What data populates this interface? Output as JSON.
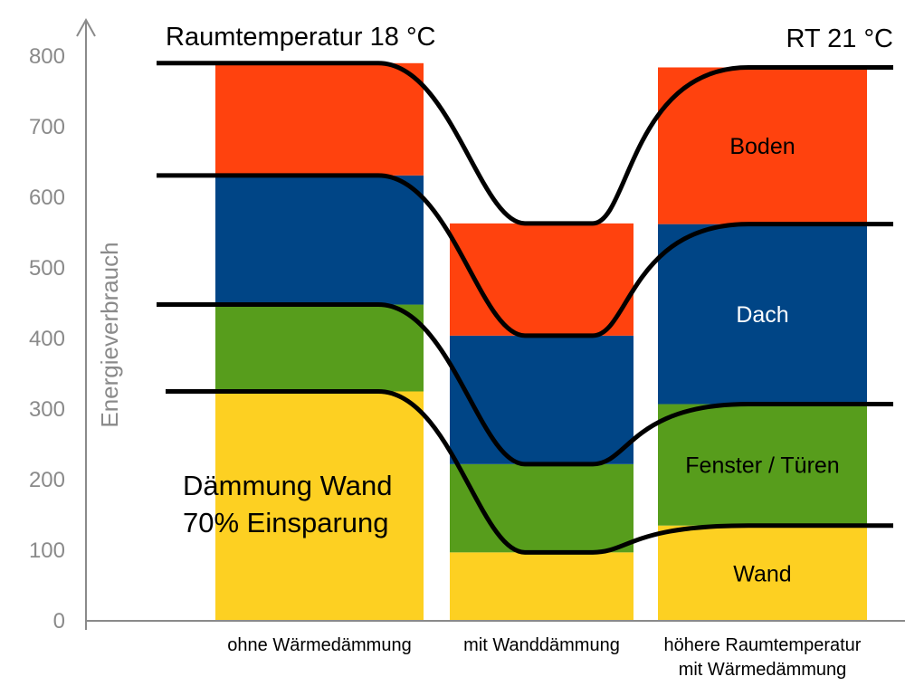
{
  "chart_data": {
    "type": "bar",
    "stacked": true,
    "ylabel": "Energieverbrauch",
    "ylim": [
      0,
      800
    ],
    "yticks": [
      0,
      100,
      200,
      300,
      400,
      500,
      600,
      700,
      800
    ],
    "grid": false,
    "categories": [
      [
        "ohne Wärmedämmung"
      ],
      [
        "mit Wanddämmung"
      ],
      [
        "höhere Raumtemperatur",
        "mit Wärmedämmung"
      ]
    ],
    "series": [
      {
        "name": "Wand",
        "color": "#FDD022",
        "labelColor": "#000000",
        "values": [
          325,
          97,
          135
        ]
      },
      {
        "name": "Fenster / Türen",
        "color": "#579D1C",
        "labelColor": "#000000",
        "values": [
          123,
          125,
          172
        ]
      },
      {
        "name": "Dach",
        "color": "#004586",
        "labelColor": "#ffffff",
        "values": [
          183,
          182,
          255
        ]
      },
      {
        "name": "Boden",
        "color": "#FF420E",
        "labelColor": "#000000",
        "values": [
          159,
          159,
          222
        ]
      }
    ],
    "annotations": [
      {
        "text": "Raumtemperatur 18 °C"
      },
      {
        "text": "RT 21 °C"
      },
      {
        "lines": [
          "Dämmung Wand",
          "70% Einsparung"
        ]
      }
    ]
  }
}
